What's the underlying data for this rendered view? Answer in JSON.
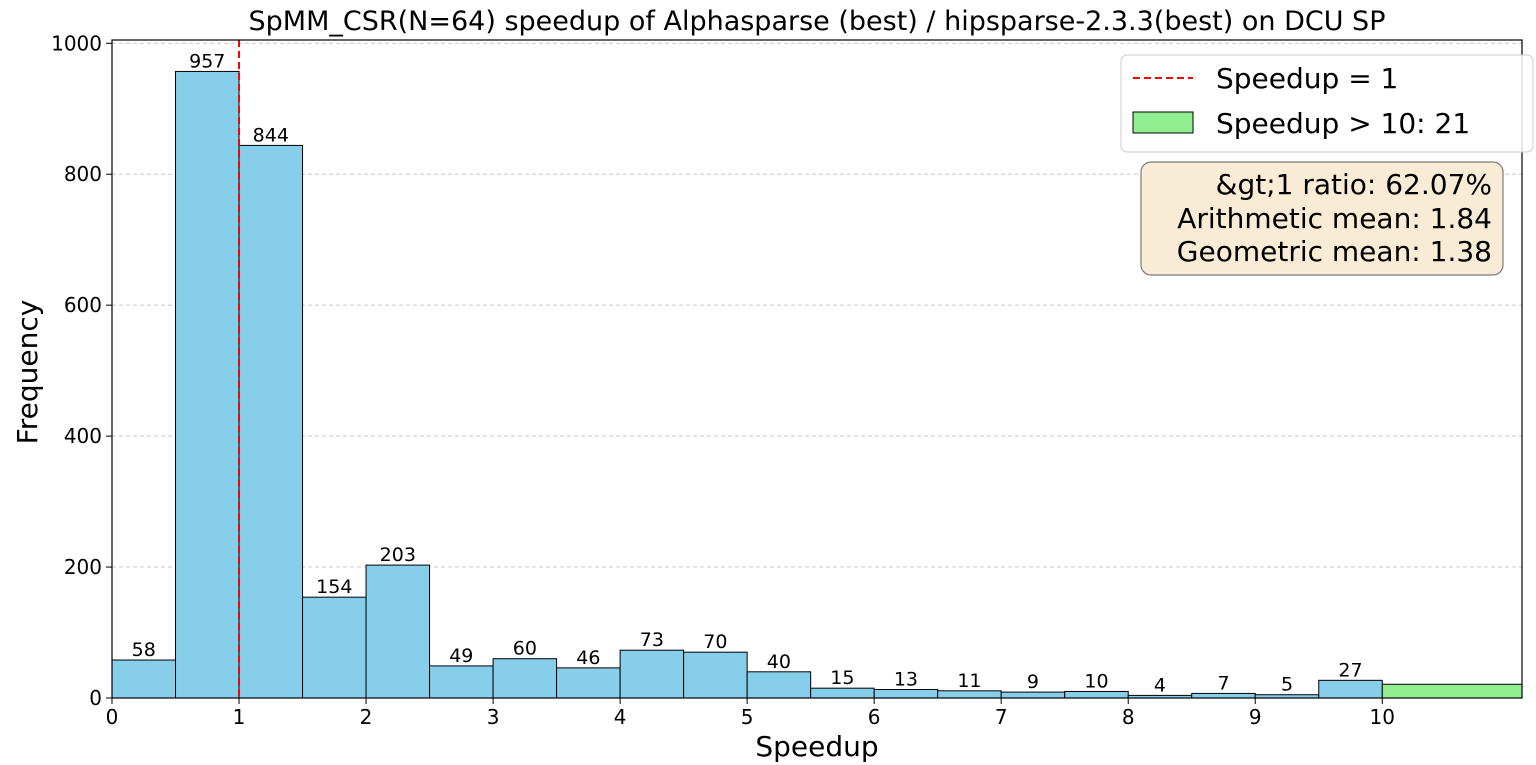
{
  "chart_data": {
    "type": "bar",
    "title": "SpMM_CSR(N=64) speedup of Alphasparse (best) / hipsparse-2.3.3(best) on DCU SP",
    "xlabel": "Speedup",
    "ylabel": "Frequency",
    "xlim": [
      0,
      11.1
    ],
    "ylim": [
      0,
      1005
    ],
    "xticks": [
      0,
      1,
      2,
      3,
      4,
      5,
      6,
      7,
      8,
      9,
      10
    ],
    "yticks": [
      0,
      200,
      400,
      600,
      800,
      1000
    ],
    "bin_width": 0.5,
    "bin_starts": [
      0,
      0.5,
      1,
      1.5,
      2,
      2.5,
      3,
      3.5,
      4,
      4.5,
      5,
      5.5,
      6,
      6.5,
      7,
      7.5,
      8,
      8.5,
      9,
      9.5
    ],
    "values": [
      58,
      957,
      844,
      154,
      203,
      49,
      60,
      46,
      73,
      70,
      40,
      15,
      13,
      11,
      9,
      10,
      4,
      7,
      5,
      27
    ],
    "bar_color": "#87CEEB",
    "overflow_bar": {
      "x_start": 10,
      "x_end": 11.1,
      "value": 21,
      "color": "#90EE90"
    },
    "reference_line": {
      "x": 1,
      "color": "#FF0000",
      "style": "dashed"
    },
    "grid": "y-dashed",
    "legend": {
      "placement": "top-right",
      "items": [
        {
          "label": "Speedup = 1",
          "type": "dashed-line",
          "color": "#FF0000"
        },
        {
          "label": "Speedup > 10: 21",
          "type": "patch",
          "color": "#90EE90"
        }
      ]
    },
    "stats_box": {
      "placement": "top-right",
      "bg": "#F8ECD6",
      "lines": [
        "&gt;1 ratio: 62.07%",
        "Arithmetic mean: 1.84",
        "Geometric mean: 1.38"
      ]
    }
  }
}
